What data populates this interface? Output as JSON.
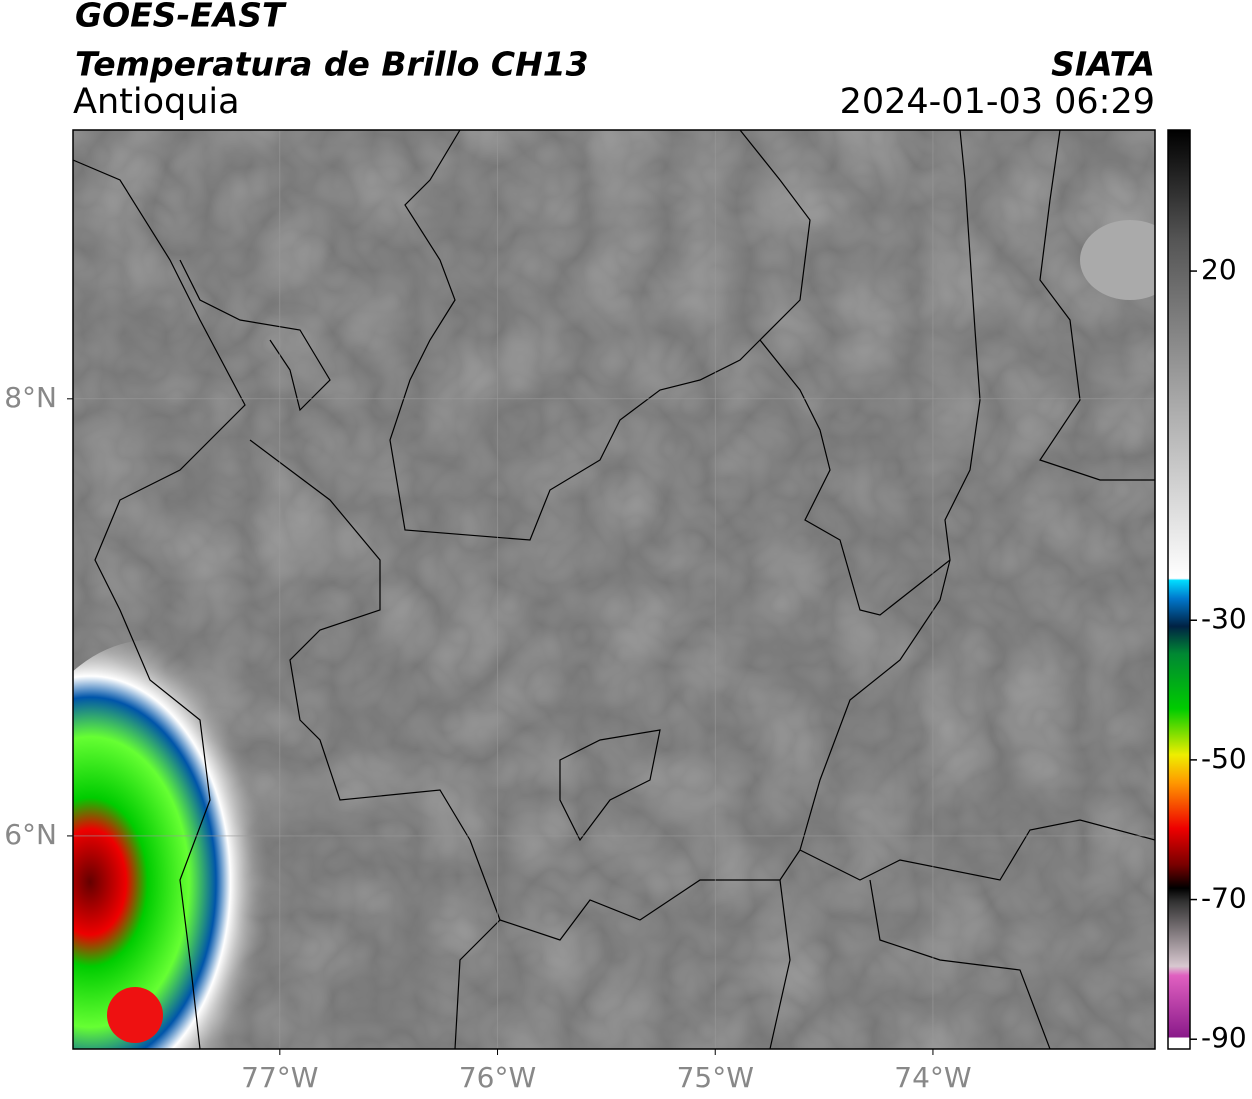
{
  "header": {
    "product": "GOES-EAST",
    "title": "Temperatura de Brillo CH13",
    "region": "Antioquia",
    "agency": "SIATA",
    "datetime": "2024-01-03 06:29"
  },
  "map": {
    "xlim": [
      -77.95,
      -72.98
    ],
    "ylim": [
      5.025,
      9.23
    ],
    "xticks": [
      {
        "value": -77,
        "label": "77°W"
      },
      {
        "value": -76,
        "label": "76°W"
      },
      {
        "value": -75,
        "label": "75°W"
      },
      {
        "value": -74,
        "label": "74°W"
      }
    ],
    "yticks": [
      {
        "value": 8,
        "label": "8°N"
      },
      {
        "value": 6,
        "label": "6°N"
      }
    ]
  },
  "colorbar": {
    "lim": [
      -91.4,
      40.2
    ],
    "ticks": [
      20,
      -30,
      -50,
      -70,
      -90
    ]
  }
}
